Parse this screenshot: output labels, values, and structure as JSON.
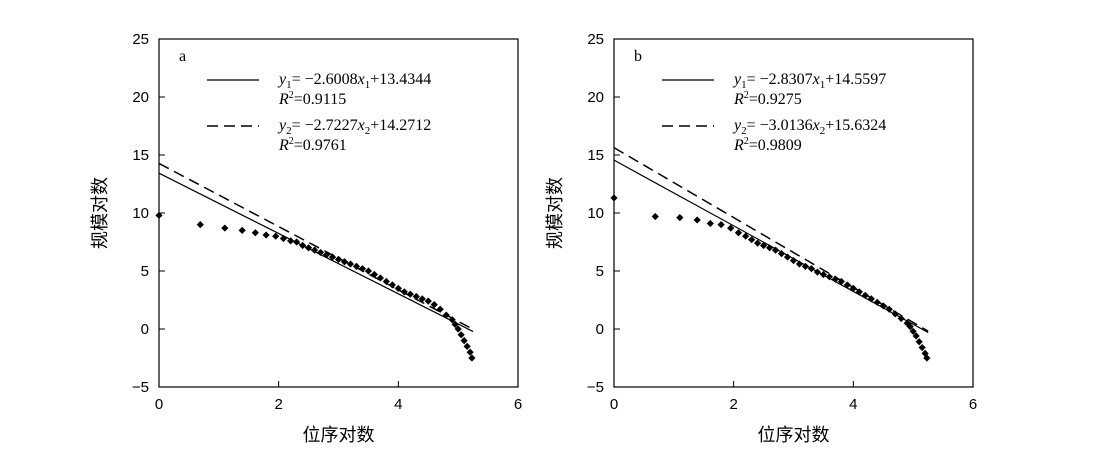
{
  "chart_data": [
    {
      "panel": "a",
      "type": "scatter",
      "xlabel": "位序对数",
      "ylabel": "规模对数",
      "xlim": [
        0,
        6
      ],
      "ylim": [
        -5,
        25
      ],
      "x_ticks": [
        "0",
        "2",
        "4",
        "6"
      ],
      "y_ticks": [
        "−5",
        "0",
        "5",
        "10",
        "15",
        "20",
        "25"
      ],
      "legend_position": "top-right",
      "points": [
        [
          0,
          9.8
        ],
        [
          0.69,
          9.0
        ],
        [
          1.1,
          8.7
        ],
        [
          1.39,
          8.5
        ],
        [
          1.61,
          8.3
        ],
        [
          1.79,
          8.1
        ],
        [
          1.95,
          8.0
        ],
        [
          2.08,
          7.8
        ],
        [
          2.2,
          7.6
        ],
        [
          2.3,
          7.5
        ],
        [
          2.4,
          7.2
        ],
        [
          2.5,
          7.0
        ],
        [
          2.6,
          6.8
        ],
        [
          2.7,
          6.6
        ],
        [
          2.8,
          6.4
        ],
        [
          2.9,
          6.2
        ],
        [
          3.0,
          6.0
        ],
        [
          3.1,
          5.8
        ],
        [
          3.2,
          5.6
        ],
        [
          3.3,
          5.4
        ],
        [
          3.4,
          5.2
        ],
        [
          3.5,
          5.0
        ],
        [
          3.6,
          4.7
        ],
        [
          3.7,
          4.4
        ],
        [
          3.8,
          4.1
        ],
        [
          3.9,
          3.8
        ],
        [
          4.0,
          3.5
        ],
        [
          4.1,
          3.2
        ],
        [
          4.2,
          3.0
        ],
        [
          4.3,
          2.8
        ],
        [
          4.4,
          2.6
        ],
        [
          4.5,
          2.4
        ],
        [
          4.6,
          2.1
        ],
        [
          4.7,
          1.7
        ],
        [
          4.8,
          1.2
        ],
        [
          4.9,
          0.8
        ],
        [
          4.95,
          0.4
        ],
        [
          5.0,
          0.0
        ],
        [
          5.05,
          -0.5
        ],
        [
          5.1,
          -1.0
        ],
        [
          5.15,
          -1.5
        ],
        [
          5.2,
          -2.0
        ],
        [
          5.23,
          -2.5
        ]
      ],
      "series": [
        {
          "name": "y1",
          "style": "solid",
          "equation": "= −2.6008",
          "var": "x",
          "sub": "1",
          "const": "+13.4344",
          "r2": "=0.9115",
          "slope": -2.6008,
          "intercept": 13.4344,
          "x_range": [
            0,
            5.25
          ]
        },
        {
          "name": "y2",
          "style": "dashed",
          "equation": "= −2.7227",
          "var": "x",
          "sub": "2",
          "const": "+14.2712",
          "r2": "=0.9761",
          "slope": -2.7227,
          "intercept": 14.2712,
          "x_range": [
            0,
            5.25
          ]
        }
      ]
    },
    {
      "panel": "b",
      "type": "scatter",
      "xlabel": "位序对数",
      "ylabel": "规模对数",
      "xlim": [
        0,
        6
      ],
      "ylim": [
        -5,
        25
      ],
      "x_ticks": [
        "0",
        "2",
        "4",
        "6"
      ],
      "y_ticks": [
        "−5",
        "0",
        "5",
        "10",
        "15",
        "20",
        "25"
      ],
      "legend_position": "top-right",
      "points": [
        [
          0,
          11.3
        ],
        [
          0.69,
          9.7
        ],
        [
          1.1,
          9.6
        ],
        [
          1.39,
          9.4
        ],
        [
          1.61,
          9.1
        ],
        [
          1.79,
          9.0
        ],
        [
          1.95,
          8.7
        ],
        [
          2.08,
          8.3
        ],
        [
          2.2,
          8.0
        ],
        [
          2.3,
          7.7
        ],
        [
          2.4,
          7.4
        ],
        [
          2.5,
          7.2
        ],
        [
          2.6,
          7.0
        ],
        [
          2.7,
          6.8
        ],
        [
          2.8,
          6.5
        ],
        [
          2.9,
          6.2
        ],
        [
          3.0,
          5.9
        ],
        [
          3.1,
          5.6
        ],
        [
          3.2,
          5.4
        ],
        [
          3.3,
          5.2
        ],
        [
          3.4,
          4.9
        ],
        [
          3.5,
          4.7
        ],
        [
          3.6,
          4.5
        ],
        [
          3.7,
          4.3
        ],
        [
          3.8,
          4.1
        ],
        [
          3.9,
          3.8
        ],
        [
          4.0,
          3.5
        ],
        [
          4.1,
          3.2
        ],
        [
          4.2,
          2.9
        ],
        [
          4.3,
          2.6
        ],
        [
          4.4,
          2.3
        ],
        [
          4.5,
          2.0
        ],
        [
          4.6,
          1.7
        ],
        [
          4.7,
          1.3
        ],
        [
          4.8,
          0.9
        ],
        [
          4.9,
          0.5
        ],
        [
          4.95,
          0.2
        ],
        [
          5.0,
          -0.2
        ],
        [
          5.05,
          -0.6
        ],
        [
          5.1,
          -1.1
        ],
        [
          5.15,
          -1.6
        ],
        [
          5.2,
          -2.1
        ],
        [
          5.23,
          -2.5
        ]
      ],
      "series": [
        {
          "name": "y1",
          "style": "solid",
          "equation": "= −2.8307",
          "var": "x",
          "sub": "1",
          "const": "+14.5597",
          "r2": "=0.9275",
          "slope": -2.8307,
          "intercept": 14.5597,
          "x_range": [
            0,
            5.25
          ]
        },
        {
          "name": "y2",
          "style": "dashed",
          "equation": "= −3.0136",
          "var": "x",
          "sub": "2",
          "const": "+15.6324",
          "r2": "=0.9809",
          "slope": -3.0136,
          "intercept": 15.6324,
          "x_range": [
            0,
            5.25
          ]
        }
      ]
    }
  ]
}
